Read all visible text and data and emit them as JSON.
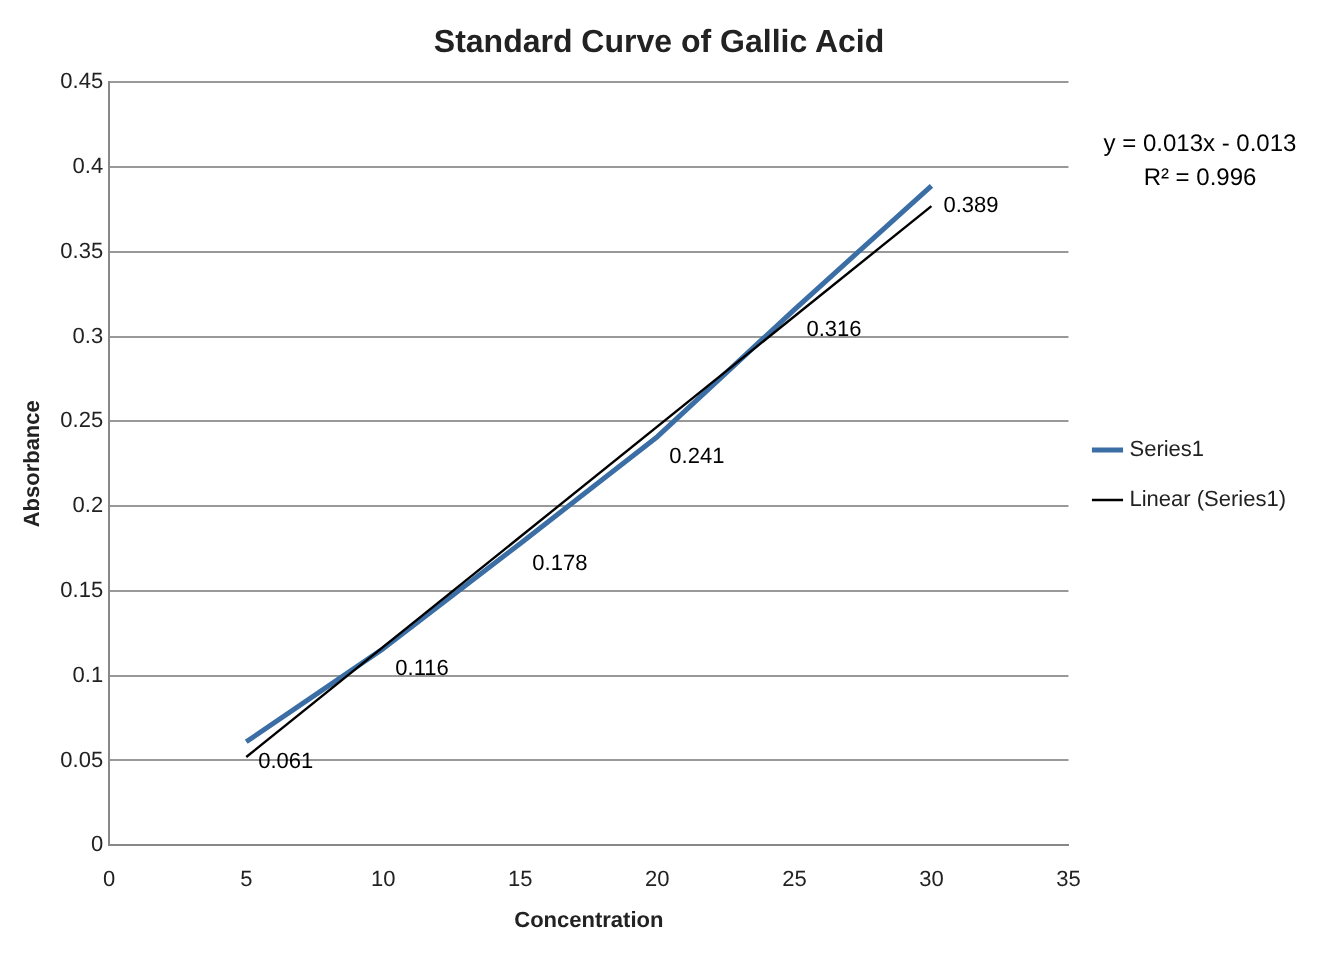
{
  "chart_data": {
    "type": "line",
    "title": "Standard Curve of Gallic Acid",
    "xlabel": "Concentration",
    "ylabel": "Absorbance",
    "x": [
      5,
      10,
      15,
      20,
      25,
      30
    ],
    "series": [
      {
        "name": "Series1",
        "color": "#3a6ea5",
        "values": [
          0.061,
          0.116,
          0.178,
          0.241,
          0.316,
          0.389
        ],
        "value_labels": [
          "0.061",
          "0.116",
          "0.178",
          "0.241",
          "0.316",
          "0.389"
        ]
      },
      {
        "name": "Linear (Series1)",
        "color": "#000000",
        "x": [
          5,
          30
        ],
        "values": [
          0.052,
          0.377
        ]
      }
    ],
    "xlim": [
      0,
      35
    ],
    "xticks": [
      0,
      5,
      10,
      15,
      20,
      25,
      30,
      35
    ],
    "ylim": [
      0,
      0.45
    ],
    "yticks": [
      0,
      0.05,
      0.1,
      0.15,
      0.2,
      0.25,
      0.3,
      0.35,
      0.4,
      0.45
    ],
    "annotations": [
      "y = 0.013x - 0.013",
      "R² = 0.996"
    ],
    "grid": "y",
    "legend": "right",
    "marker": "none",
    "line_style": "solid"
  }
}
